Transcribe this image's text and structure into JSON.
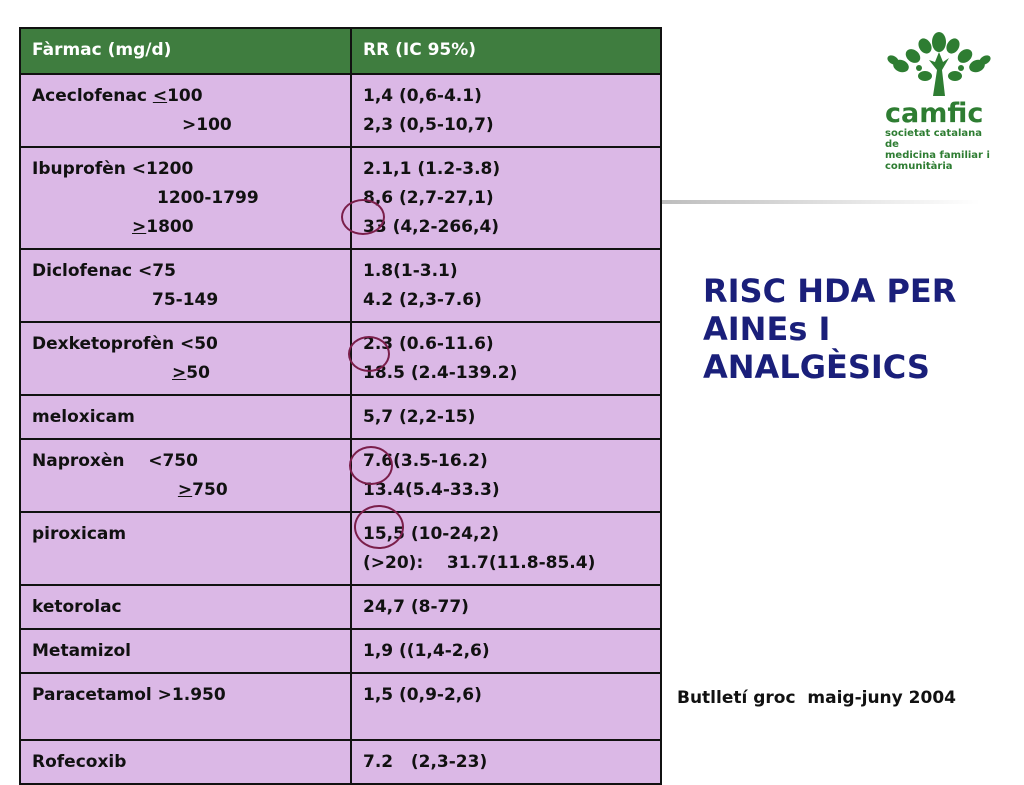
{
  "table": {
    "headers": [
      "Fàrmac (mg/d)",
      "RR (IC 95%)"
    ],
    "rows": [
      {
        "drug": [
          [
            "Aceclofenac ",
            "<",
            "100"
          ],
          [
            "",
            "",
            ">100"
          ]
        ],
        "rr": [
          "1,4 (0,6-4.1)",
          "2,3 (0,5-10,7)"
        ]
      },
      {
        "drug": [
          [
            "Ibuprofèn <1200",
            "",
            ""
          ],
          [
            "1200-1799",
            "",
            ""
          ],
          [
            "",
            ">",
            "1800"
          ]
        ],
        "rr": [
          "2.1,1 (1.2-3.8)",
          "8,6 (2,7-27,1)",
          "33 (4,2-266,4)"
        ]
      },
      {
        "drug": [
          [
            "Diclofenac <75",
            "",
            ""
          ],
          [
            "75-149",
            "",
            ""
          ]
        ],
        "rr": [
          "1.8(1-3.1)",
          "4.2 (2,3-7.6)"
        ]
      },
      {
        "drug": [
          [
            "Dexketoprofèn <50",
            "",
            ""
          ],
          [
            "",
            ">",
            "50"
          ]
        ],
        "rr": [
          "2.3 (0.6-11.6)",
          "18.5 (2.4-139.2)"
        ]
      },
      {
        "drug": [
          [
            "meloxicam",
            "",
            ""
          ]
        ],
        "rr": [
          "5,7 (2,2-15)"
        ]
      },
      {
        "drug": [
          [
            "Naproxèn    <750",
            "",
            ""
          ],
          [
            " ",
            ">",
            "750"
          ]
        ],
        "rr": [
          "7.6(3.5-16.2)",
          "13.4(5.4-33.3)"
        ]
      },
      {
        "drug": [
          [
            "piroxicam",
            "",
            ""
          ]
        ],
        "rr": [
          "15,5 (10-24,2)",
          "(>20):    31.7(11.8-85.4)"
        ]
      },
      {
        "drug": [
          [
            "ketorolac",
            "",
            ""
          ]
        ],
        "rr": [
          "24,7 (8-77)"
        ]
      },
      {
        "drug": [
          [
            "Metamizol",
            "",
            ""
          ]
        ],
        "rr": [
          "1,9 ((1,4-2,6)"
        ]
      },
      {
        "drug": [
          [
            "Paracetamol >1.950",
            "",
            ""
          ]
        ],
        "rr": [
          "1,5 (0,9-2,6)"
        ]
      },
      {
        "drug": [
          [
            "Rofecoxib",
            "",
            ""
          ]
        ],
        "rr": [
          "7.2   (2,3-23)"
        ]
      }
    ]
  },
  "logo": {
    "name": "camfic",
    "subtitle": [
      "societat catalana de",
      "medicina familiar i",
      "comunitària"
    ],
    "icon": "tree-of-people-icon",
    "color": "#2e7d32"
  },
  "title": [
    "RISC HDA PER",
    "AINEs I",
    "ANALGÈSICS"
  ],
  "footer": "Butlletí groc  maig-juny 2004",
  "colors": {
    "header_bg": "#3f7d3f",
    "cell_bg": "#dbb8e6",
    "title": "#1a1f7a",
    "circle": "#7a1e4a"
  }
}
